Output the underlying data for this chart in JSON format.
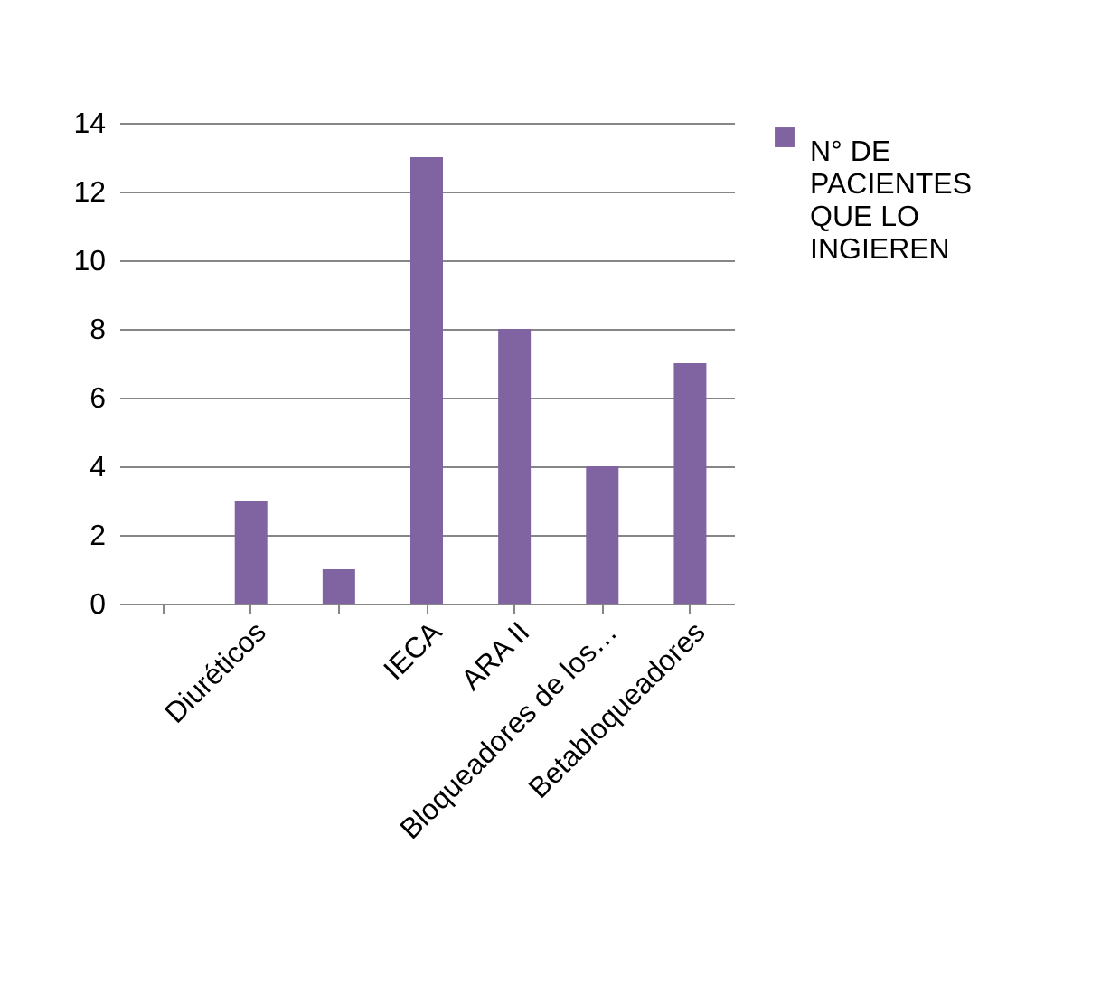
{
  "chart_data": {
    "type": "bar",
    "categories": [
      null,
      "Diuréticos",
      null,
      "IECA",
      "ARA II",
      "Bloqueadores de los…",
      "Betabloqueadores"
    ],
    "series": [
      {
        "name": "N° DE PACIENTES QUE LO INGIEREN",
        "color": "#8064a2",
        "values": [
          null,
          3,
          1,
          13,
          8,
          4,
          7
        ]
      }
    ],
    "ylim": [
      0,
      14
    ],
    "yticks": [
      0,
      2,
      4,
      6,
      8,
      10,
      12,
      14
    ],
    "grid": "y",
    "legend": "right"
  }
}
